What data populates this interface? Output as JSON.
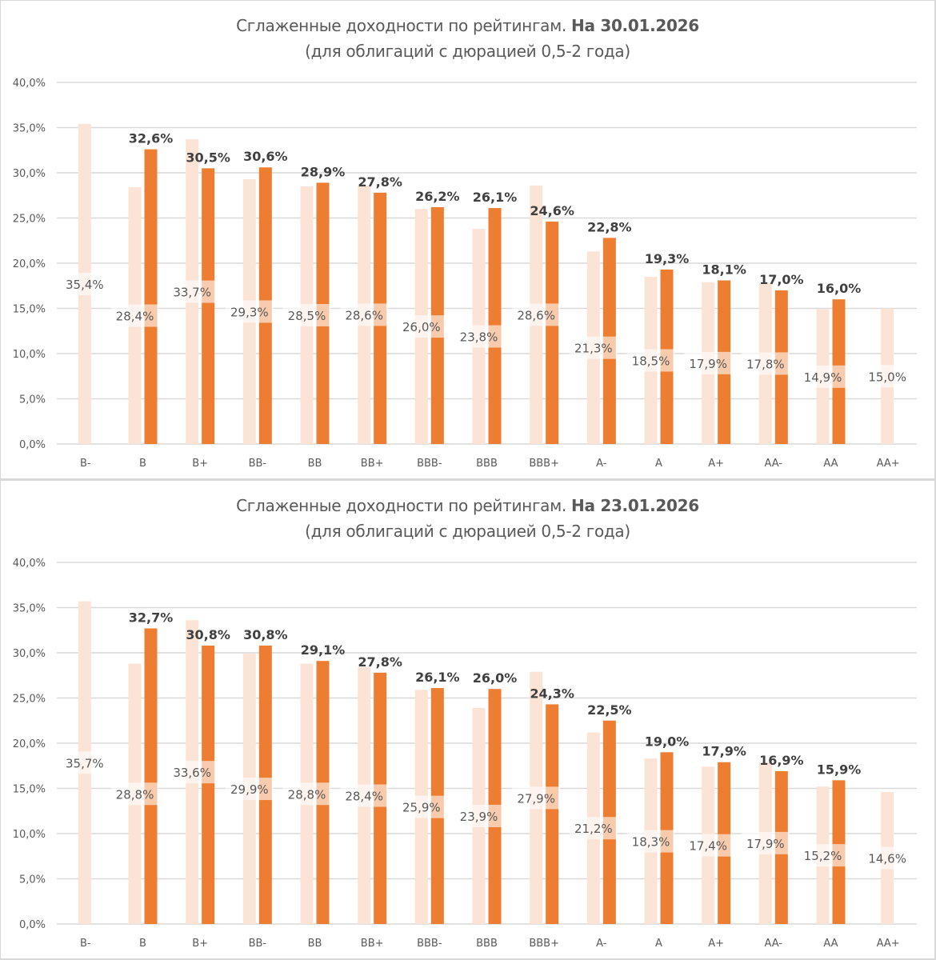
{
  "colors": {
    "prev": "#fbe3d6",
    "curr": "#ed7d31",
    "grid": "#d9d9d9",
    "text": "#595959",
    "label_bold": "#404040"
  },
  "chart_data": [
    {
      "type": "bar",
      "title": "Сглаженные доходности по рейтингам.",
      "title_date": "На 30.01.2026",
      "subtitle": "(для облигаций с дюрацией 0,5-2 года)",
      "xlabel": "",
      "ylabel": "",
      "ylim": [
        0,
        40
      ],
      "yticks": [
        "0,0%",
        "5,0%",
        "10,0%",
        "15,0%",
        "20,0%",
        "25,0%",
        "30,0%",
        "35,0%",
        "40,0%"
      ],
      "grid": true,
      "categories": [
        "B-",
        "B",
        "B+",
        "BB-",
        "BB",
        "BB+",
        "BBB-",
        "BBB",
        "BBB+",
        "A-",
        "A",
        "A+",
        "AA-",
        "AA",
        "AA+"
      ],
      "series": [
        {
          "name": "previous",
          "values": [
            35.4,
            28.4,
            33.7,
            29.3,
            28.5,
            28.6,
            26.0,
            23.8,
            28.6,
            21.3,
            18.5,
            17.9,
            17.8,
            14.9,
            15.0
          ],
          "labels": [
            "35,4%",
            "28,4%",
            "33,7%",
            "29,3%",
            "28,5%",
            "28,6%",
            "26,0%",
            "23,8%",
            "28,6%",
            "21,3%",
            "18,5%",
            "17,9%",
            "17,8%",
            "14,9%",
            "15,0%"
          ]
        },
        {
          "name": "current",
          "values": [
            null,
            32.6,
            30.5,
            30.6,
            28.9,
            27.8,
            26.2,
            26.1,
            24.6,
            22.8,
            19.3,
            18.1,
            17.0,
            16.0,
            null
          ],
          "labels": [
            "",
            "32,6%",
            "30,5%",
            "30,6%",
            "28,9%",
            "27,8%",
            "26,2%",
            "26,1%",
            "24,6%",
            "22,8%",
            "19,3%",
            "18,1%",
            "17,0%",
            "16,0%",
            ""
          ]
        }
      ]
    },
    {
      "type": "bar",
      "title": "Сглаженные доходности по рейтингам.",
      "title_date": "На 23.01.2026",
      "subtitle": "(для облигаций с дюрацией 0,5-2 года)",
      "xlabel": "",
      "ylabel": "",
      "ylim": [
        0,
        40
      ],
      "yticks": [
        "0,0%",
        "5,0%",
        "10,0%",
        "15,0%",
        "20,0%",
        "25,0%",
        "30,0%",
        "35,0%",
        "40,0%"
      ],
      "grid": true,
      "categories": [
        "B-",
        "B",
        "B+",
        "BB-",
        "BB",
        "BB+",
        "BBB-",
        "BBB",
        "BBB+",
        "A-",
        "A",
        "A+",
        "AA-",
        "AA",
        "AA+"
      ],
      "series": [
        {
          "name": "previous",
          "values": [
            35.7,
            28.8,
            33.6,
            29.9,
            28.8,
            28.4,
            25.9,
            23.9,
            27.9,
            21.2,
            18.3,
            17.4,
            17.9,
            15.2,
            14.6
          ],
          "labels": [
            "35,7%",
            "28,8%",
            "33,6%",
            "29,9%",
            "28,8%",
            "28,4%",
            "25,9%",
            "23,9%",
            "27,9%",
            "21,2%",
            "18,3%",
            "17,4%",
            "17,9%",
            "15,2%",
            "14,6%"
          ]
        },
        {
          "name": "current",
          "values": [
            null,
            32.7,
            30.8,
            30.8,
            29.1,
            27.8,
            26.1,
            26.0,
            24.3,
            22.5,
            19.0,
            17.9,
            16.9,
            15.9,
            null
          ],
          "labels": [
            "",
            "32,7%",
            "30,8%",
            "30,8%",
            "29,1%",
            "27,8%",
            "26,1%",
            "26,0%",
            "24,3%",
            "22,5%",
            "19,0%",
            "17,9%",
            "16,9%",
            "15,9%",
            ""
          ]
        }
      ]
    }
  ]
}
